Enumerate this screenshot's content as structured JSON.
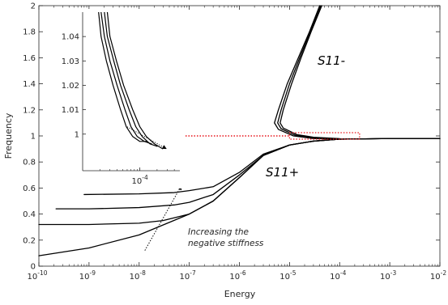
{
  "chart_data": [
    {
      "type": "line",
      "title": "",
      "xlabel": "Energy",
      "ylabel": "Frequency",
      "xscale": "log",
      "xlim": [
        1e-10,
        0.01
      ],
      "ylim": [
        0,
        2
      ],
      "grid": false,
      "x_ticks": [
        1e-10,
        1e-09,
        1e-08,
        1e-07,
        1e-06,
        1e-05,
        0.0001,
        0.001,
        0.01
      ],
      "x_tick_labels": [
        {
          "base": "10",
          "exp": "-10"
        },
        {
          "base": "10",
          "exp": "-9"
        },
        {
          "base": "10",
          "exp": "-8"
        },
        {
          "base": "10",
          "exp": "-7"
        },
        {
          "base": "10",
          "exp": "-6"
        },
        {
          "base": "10",
          "exp": "-5"
        },
        {
          "base": "10",
          "exp": "-4"
        },
        {
          "base": "10",
          "exp": "-3"
        },
        {
          "base": "10",
          "exp": "-2"
        }
      ],
      "y_ticks": [
        0,
        0.2,
        0.4,
        0.6,
        0.8,
        1,
        1.2,
        1.4,
        1.6,
        1.8,
        2
      ],
      "y_tick_labels": [
        "0",
        "0.2",
        "0.4",
        "0.6",
        "0.8",
        "1",
        "1.2",
        "1.4",
        "1.6",
        "1.8",
        "2"
      ],
      "series": [
        {
          "values": [
            [
              1e-10,
              0.08
            ],
            [
              1e-09,
              0.14
            ],
            [
              1e-08,
              0.24
            ],
            [
              1e-07,
              0.4
            ],
            [
              3e-07,
              0.5
            ],
            [
              1e-06,
              0.68
            ],
            [
              3e-06,
              0.85
            ],
            [
              1e-05,
              0.93
            ],
            [
              3e-05,
              0.96
            ],
            [
              0.0001,
              0.975
            ],
            [
              0.001,
              0.98
            ],
            [
              0.01,
              0.98
            ]
          ]
        },
        {
          "values": [
            [
              1e-10,
              0.32
            ],
            [
              1e-09,
              0.32
            ],
            [
              1e-08,
              0.33
            ],
            [
              3e-08,
              0.35
            ],
            [
              1e-07,
              0.4
            ],
            [
              3e-07,
              0.5
            ],
            [
              1e-06,
              0.68
            ],
            [
              3e-06,
              0.85
            ],
            [
              1e-05,
              0.93
            ],
            [
              3e-05,
              0.96
            ],
            [
              0.0001,
              0.975
            ],
            [
              0.001,
              0.98
            ],
            [
              0.01,
              0.98
            ]
          ]
        },
        {
          "values": [
            [
              2.2e-10,
              0.44
            ],
            [
              1e-09,
              0.44
            ],
            [
              1e-08,
              0.45
            ],
            [
              5e-08,
              0.47
            ],
            [
              1e-07,
              0.49
            ],
            [
              3e-07,
              0.55
            ],
            [
              1e-06,
              0.7
            ],
            [
              3e-06,
              0.85
            ],
            [
              1e-05,
              0.93
            ],
            [
              3e-05,
              0.96
            ],
            [
              0.0001,
              0.975
            ],
            [
              0.001,
              0.98
            ],
            [
              0.01,
              0.98
            ]
          ]
        },
        {
          "values": [
            [
              8e-10,
              0.55
            ],
            [
              1e-08,
              0.555
            ],
            [
              5e-08,
              0.565
            ],
            [
              1e-07,
              0.58
            ],
            [
              3e-07,
              0.61
            ],
            [
              1e-06,
              0.72
            ],
            [
              3e-06,
              0.86
            ],
            [
              1e-05,
              0.93
            ],
            [
              3e-05,
              0.96
            ],
            [
              0.0001,
              0.975
            ],
            [
              0.001,
              0.98
            ],
            [
              0.01,
              0.98
            ]
          ]
        },
        {
          "values": [
            [
              0.0001,
              0.975
            ],
            [
              3e-05,
              0.98
            ],
            [
              1.2e-05,
              1.0
            ],
            [
              6e-06,
              1.05
            ],
            [
              5e-06,
              1.1
            ],
            [
              6e-06,
              1.2
            ],
            [
              9e-06,
              1.4
            ],
            [
              1.5e-05,
              1.6
            ],
            [
              2.5e-05,
              1.8
            ],
            [
              4e-05,
              2.0
            ]
          ]
        },
        {
          "values": [
            [
              0.0001,
              0.977
            ],
            [
              3e-05,
              0.985
            ],
            [
              1.3e-05,
              1.005
            ],
            [
              6.8e-06,
              1.055
            ],
            [
              5.8e-06,
              1.1
            ],
            [
              6.8e-06,
              1.2
            ],
            [
              1e-05,
              1.4
            ],
            [
              1.6e-05,
              1.6
            ],
            [
              2.6e-05,
              1.8
            ],
            [
              4.2e-05,
              2.0
            ]
          ]
        },
        {
          "values": [
            [
              0.0001,
              0.979
            ],
            [
              3e-05,
              0.99
            ],
            [
              1.4e-05,
              1.01
            ],
            [
              7.5e-06,
              1.06
            ],
            [
              6.5e-06,
              1.1
            ],
            [
              7.5e-06,
              1.2
            ],
            [
              1.1e-05,
              1.4
            ],
            [
              1.7e-05,
              1.6
            ],
            [
              2.7e-05,
              1.8
            ],
            [
              4.4e-05,
              2.0
            ]
          ]
        }
      ],
      "annotations": {
        "s11_minus": "S11-",
        "s11_plus": "S11+",
        "increasing_line1": "Increasing the",
        "increasing_line2": "negative stiffness"
      },
      "highlight_box": {
        "x": [
          1e-05,
          0.00025
        ],
        "y": [
          0.975,
          1.025
        ]
      },
      "red_guide": {
        "x": [
          5e-08,
          1e-05
        ],
        "y": [
          1.0,
          1.0
        ]
      },
      "colors": {
        "curve": "#000000",
        "highlight": "#e8141a",
        "axis": "#262626"
      }
    },
    {
      "type": "line",
      "title": "",
      "xscale": "log",
      "xlim": [
        1e-05,
        0.0005
      ],
      "ylim": [
        0.985,
        1.05
      ],
      "y_ticks": [
        1,
        1.01,
        1.02,
        1.03,
        1.04
      ],
      "y_tick_labels": [
        "1",
        "1.01",
        "1.02",
        "1.03",
        "1.04"
      ],
      "x_ticks": [
        0.0001
      ],
      "x_tick_labels": [
        {
          "base": "10",
          "exp": "-4"
        }
      ],
      "series": [
        {
          "values": [
            [
              1.9e-05,
              1.05
            ],
            [
              2.1e-05,
              1.04
            ],
            [
              2.6e-05,
              1.03
            ],
            [
              3.4e-05,
              1.02
            ],
            [
              4.6e-05,
              1.01
            ],
            [
              5.8e-05,
              1.003
            ],
            [
              7.5e-05,
              0.999
            ],
            [
              0.0001,
              0.997
            ],
            [
              0.00013,
              0.997
            ]
          ]
        },
        {
          "values": [
            [
              2.1e-05,
              1.05
            ],
            [
              2.4e-05,
              1.04
            ],
            [
              3e-05,
              1.03
            ],
            [
              4e-05,
              1.02
            ],
            [
              5.5e-05,
              1.01
            ],
            [
              7e-05,
              1.003
            ],
            [
              9e-05,
              0.999
            ],
            [
              0.00012,
              0.997
            ],
            [
              0.00016,
              0.996
            ]
          ]
        },
        {
          "values": [
            [
              2.4e-05,
              1.05
            ],
            [
              2.7e-05,
              1.04
            ],
            [
              3.5e-05,
              1.03
            ],
            [
              4.6e-05,
              1.02
            ],
            [
              6.5e-05,
              1.01
            ],
            [
              8.5e-05,
              1.003
            ],
            [
              0.00011,
              0.999
            ],
            [
              0.00015,
              0.996
            ],
            [
              0.0002,
              0.995
            ]
          ]
        },
        {
          "values": [
            [
              2.7e-05,
              1.05
            ],
            [
              3e-05,
              1.04
            ],
            [
              3.9e-05,
              1.03
            ],
            [
              5.2e-05,
              1.02
            ],
            [
              7.5e-05,
              1.01
            ],
            [
              0.0001,
              1.003
            ],
            [
              0.00013,
              0.999
            ],
            [
              0.00018,
              0.996
            ],
            [
              0.00025,
              0.994
            ]
          ]
        }
      ],
      "colors": {
        "curve": "#000000",
        "axis": "#262626"
      }
    }
  ]
}
